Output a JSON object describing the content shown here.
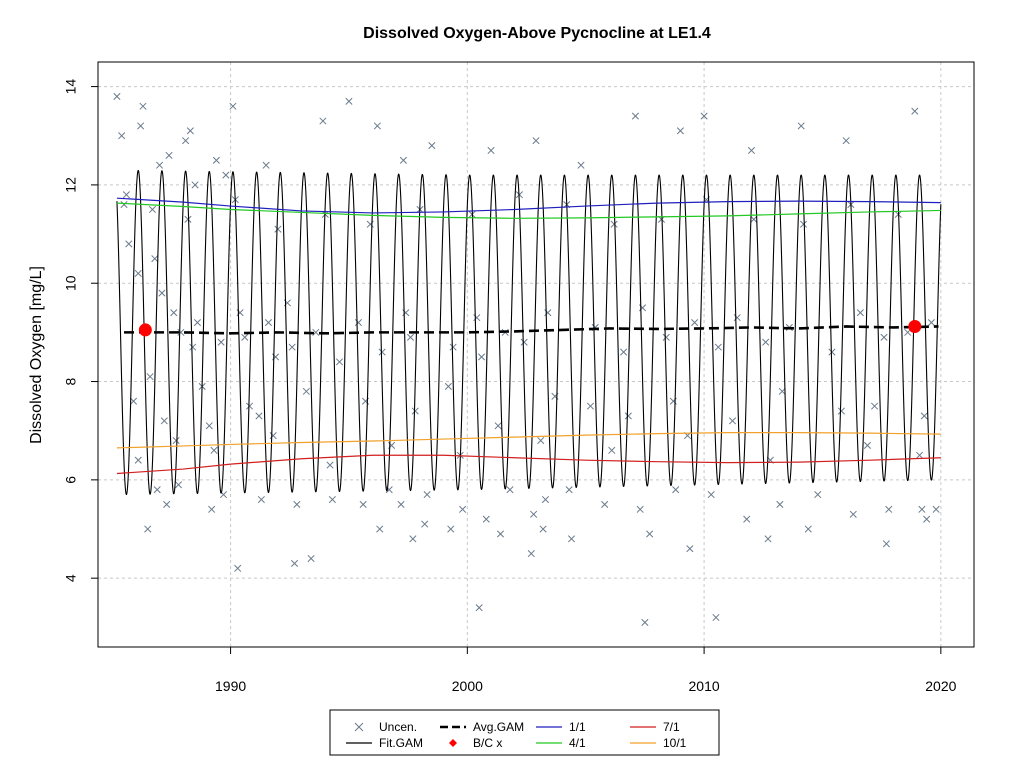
{
  "chart_data": {
    "type": "scatter",
    "title": "Dissolved Oxygen-Above Pycnocline at LE1.4",
    "xlabel": "",
    "ylabel": "Dissolved Oxygen [mg/L]",
    "xlim": [
      1984.4,
      2021.4
    ],
    "ylim": [
      2.6,
      14.5
    ],
    "x_ticks": [
      1990,
      2000,
      2010,
      2020
    ],
    "y_ticks": [
      4,
      6,
      8,
      10,
      12,
      14
    ],
    "grid": true,
    "legend_position": "bottom-center",
    "legend": [
      {
        "label": "Uncen.",
        "symbol": "x",
        "color": "#6a7a8c"
      },
      {
        "label": "Fit.GAM",
        "symbol": "line",
        "color": "#000000"
      },
      {
        "label": "Avg.GAM",
        "symbol": "dashed",
        "color": "#000000"
      },
      {
        "label": "B/C x",
        "symbol": "diamond",
        "color": "#ff0000"
      },
      {
        "label": "1/1",
        "symbol": "line",
        "color": "#1f1fbf"
      },
      {
        "label": "4/1",
        "symbol": "line",
        "color": "#22c922"
      },
      {
        "label": "7/1",
        "symbol": "line",
        "color": "#d21f1f"
      },
      {
        "label": "10/1",
        "symbol": "line",
        "color": "#f2a12a"
      }
    ],
    "series": [
      {
        "name": "Fit.GAM",
        "kind": "seasonal",
        "x_range": [
          1985.2,
          2020.0
        ],
        "color": "#000000",
        "mean": [
          [
            1985.2,
            9.0
          ],
          [
            2000,
            9.0
          ],
          [
            2020,
            9.1
          ]
        ],
        "amplitude": [
          [
            1985.2,
            3.3
          ],
          [
            2000,
            3.2
          ],
          [
            2020,
            3.1
          ]
        ],
        "phase_peak_month": 1.2
      },
      {
        "name": "Avg.GAM",
        "kind": "line",
        "color": "#000000",
        "x": [
          1985.5,
          1988,
          1990,
          1992,
          1994,
          1996,
          1998,
          2000,
          2002,
          2004,
          2006,
          2008,
          2010,
          2012,
          2014,
          2016,
          2018,
          2019.9
        ],
        "y": [
          9.0,
          9.0,
          8.98,
          9.0,
          8.98,
          9.0,
          9.0,
          9.0,
          9.02,
          9.05,
          9.08,
          9.07,
          9.08,
          9.1,
          9.08,
          9.12,
          9.1,
          9.12
        ]
      },
      {
        "name": "1/1",
        "kind": "line",
        "color": "#1f1fbf",
        "x": [
          1985.2,
          1988,
          1990,
          1993,
          1996,
          1999,
          2002,
          2005,
          2008,
          2011,
          2014,
          2017,
          2020
        ],
        "y": [
          11.73,
          11.65,
          11.57,
          11.47,
          11.43,
          11.45,
          11.5,
          11.57,
          11.63,
          11.66,
          11.67,
          11.66,
          11.64
        ]
      },
      {
        "name": "4/1",
        "kind": "line",
        "color": "#22c922",
        "x": [
          1985.2,
          1988,
          1990,
          1993,
          1996,
          1999,
          2002,
          2005,
          2008,
          2011,
          2014,
          2017,
          2020
        ],
        "y": [
          11.63,
          11.56,
          11.5,
          11.44,
          11.38,
          11.34,
          11.32,
          11.33,
          11.35,
          11.37,
          11.41,
          11.45,
          11.48
        ]
      },
      {
        "name": "7/1",
        "kind": "line",
        "color": "#d21f1f",
        "x": [
          1985.2,
          1988,
          1990,
          1993,
          1996,
          1999,
          2002,
          2005,
          2008,
          2011,
          2014,
          2017,
          2020
        ],
        "y": [
          6.13,
          6.22,
          6.32,
          6.43,
          6.5,
          6.5,
          6.45,
          6.4,
          6.37,
          6.35,
          6.36,
          6.4,
          6.45
        ]
      },
      {
        "name": "10/1",
        "kind": "line",
        "color": "#f2a12a",
        "x": [
          1985.2,
          1988,
          1990,
          1993,
          1996,
          1999,
          2002,
          2005,
          2008,
          2011,
          2014,
          2017,
          2020
        ],
        "y": [
          6.65,
          6.69,
          6.72,
          6.76,
          6.79,
          6.83,
          6.87,
          6.91,
          6.94,
          6.96,
          6.96,
          6.95,
          6.93
        ]
      },
      {
        "name": "B/C x",
        "kind": "points",
        "color": "#ff0000",
        "x": [
          1986.4,
          2018.9
        ],
        "y": [
          9.05,
          9.12
        ]
      },
      {
        "name": "Uncen.",
        "kind": "points",
        "color": "#6a7a8c",
        "x": [
          1985.2,
          1985.4,
          1985.6,
          1986.2,
          1986.3,
          1987.0,
          1987.4,
          1988.1,
          1988.3,
          1988.5,
          1989.4,
          1989.8,
          1990.1,
          1991.5,
          1993.9,
          1995.0,
          1996.2,
          1997.3,
          1998.5,
          2001.0,
          2002.9,
          2004.8,
          2007.1,
          2009.0,
          2010.0,
          2012.0,
          2014.1,
          2016.0,
          2018.9,
          1985.5,
          1986.7,
          1988.2,
          1990.2,
          1992.0,
          1994.0,
          1995.9,
          1998.0,
          2000.2,
          2002.2,
          2004.2,
          2006.2,
          2008.2,
          2010.1,
          2012.1,
          2014.2,
          2016.2,
          2018.2,
          1985.7,
          1986.1,
          1986.8,
          1987.1,
          1987.6,
          1987.9,
          1988.4,
          1988.6,
          1989.6,
          1990.4,
          1990.6,
          1991.6,
          1991.9,
          1992.4,
          1992.6,
          1993.6,
          1994.6,
          1995.4,
          1996.4,
          1997.4,
          1997.6,
          1999.4,
          2000.4,
          2000.6,
          2001.6,
          2002.4,
          2003.4,
          2005.4,
          2006.6,
          2007.4,
          2008.4,
          2009.6,
          2010.6,
          2011.4,
          2012.6,
          2013.6,
          2015.4,
          2016.6,
          2017.6,
          2018.6,
          2019.6,
          1985.9,
          1986.6,
          1987.2,
          1988.8,
          1989.1,
          1990.8,
          1991.2,
          1993.2,
          1995.7,
          1997.8,
          1999.2,
          2001.3,
          2003.7,
          2005.2,
          2006.8,
          2008.7,
          2011.2,
          2013.3,
          2015.8,
          2017.2,
          2019.3,
          1986.1,
          1987.7,
          1989.3,
          1991.8,
          1994.2,
          1996.8,
          1999.7,
          2003.1,
          2006.1,
          2009.3,
          2012.8,
          2016.9,
          2019.1,
          1986.9,
          1987.3,
          1987.8,
          1989.2,
          1989.7,
          1991.3,
          1992.8,
          1994.3,
          1995.6,
          1996.7,
          1997.2,
          1998.3,
          1999.8,
          2000.8,
          2001.8,
          2002.8,
          2003.3,
          2004.3,
          2005.8,
          2007.3,
          2008.8,
          2010.3,
          2011.8,
          2013.2,
          2014.8,
          2016.3,
          2017.8,
          2019.2,
          1992.7,
          1997.7,
          2002.7,
          2007.7,
          2012.7,
          2017.7,
          1990.3,
          1993.4,
          1996.3,
          1999.3,
          2001.4,
          2004.4,
          2009.4,
          2014.4,
          2019.4,
          2000.5,
          2007.5,
          2010.5,
          2019.8,
          1986.5,
          1998.2,
          2003.2
        ],
        "y": [
          13.8,
          13.0,
          11.8,
          13.2,
          13.6,
          12.4,
          12.6,
          12.9,
          13.1,
          12.0,
          12.5,
          12.2,
          13.6,
          12.4,
          13.3,
          13.7,
          13.2,
          12.5,
          12.8,
          12.7,
          12.9,
          12.4,
          13.4,
          13.1,
          13.4,
          12.7,
          13.2,
          12.9,
          13.5,
          11.6,
          11.5,
          11.3,
          11.7,
          11.1,
          11.4,
          11.2,
          11.5,
          11.4,
          11.8,
          11.6,
          11.2,
          11.3,
          11.7,
          11.3,
          11.2,
          11.6,
          11.4,
          10.8,
          10.2,
          10.5,
          9.8,
          9.4,
          9.0,
          8.7,
          9.2,
          8.8,
          9.4,
          8.9,
          9.2,
          8.5,
          9.6,
          8.7,
          9.0,
          8.4,
          9.2,
          8.6,
          9.4,
          8.9,
          8.7,
          9.3,
          8.5,
          9.0,
          8.8,
          9.4,
          9.1,
          8.6,
          9.5,
          8.9,
          9.2,
          8.7,
          9.3,
          8.8,
          9.1,
          8.6,
          9.4,
          8.9,
          9.0,
          9.2,
          7.6,
          8.1,
          7.2,
          7.9,
          7.1,
          7.5,
          7.3,
          7.8,
          7.6,
          7.4,
          7.9,
          7.1,
          7.7,
          7.5,
          7.3,
          7.6,
          7.2,
          7.8,
          7.4,
          7.5,
          7.3,
          6.4,
          6.8,
          6.6,
          6.9,
          6.3,
          6.7,
          6.5,
          6.8,
          6.6,
          6.9,
          6.4,
          6.7,
          6.5,
          5.8,
          5.5,
          5.9,
          5.4,
          5.7,
          5.6,
          5.5,
          5.6,
          5.5,
          5.8,
          5.5,
          5.7,
          5.4,
          5.2,
          5.8,
          5.3,
          5.6,
          5.8,
          5.5,
          5.4,
          5.8,
          5.7,
          5.2,
          5.5,
          5.7,
          5.3,
          5.4,
          5.4,
          4.3,
          4.8,
          4.5,
          4.9,
          4.8,
          4.7,
          4.2,
          4.4,
          5.0,
          5.0,
          4.9,
          4.8,
          4.6,
          5.0,
          5.2,
          3.4,
          3.1,
          3.2,
          5.4,
          5.0,
          5.1,
          5.0
        ]
      }
    ]
  }
}
